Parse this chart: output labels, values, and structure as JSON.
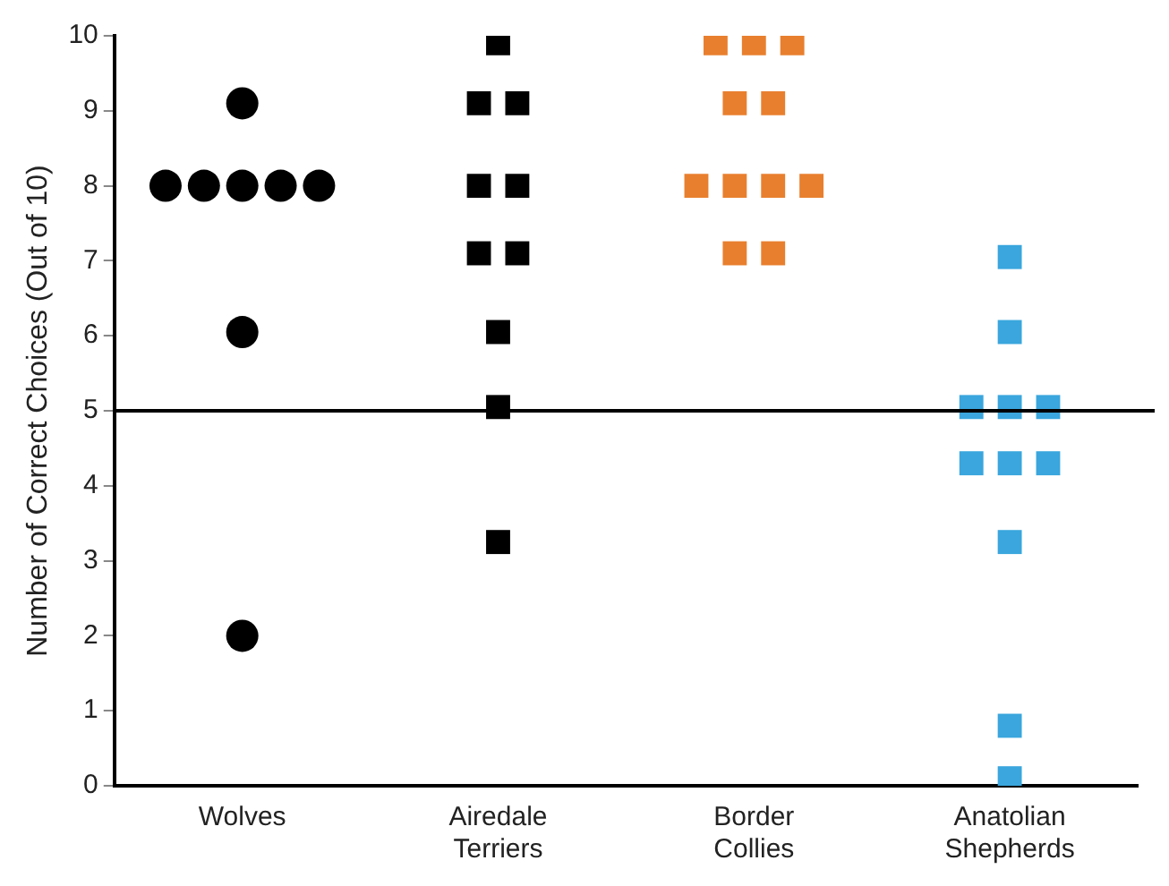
{
  "chart_data": {
    "type": "scatter",
    "ylabel": "Number of Correct Choices (Out of 10)",
    "categories": [
      "Wolves",
      "Airedale Terriers",
      "Border Collies",
      "Anatolian Shepherds"
    ],
    "ylim": [
      0,
      10
    ],
    "yticks": [
      0,
      1,
      2,
      3,
      4,
      5,
      6,
      7,
      8,
      9,
      10
    ],
    "grid": false,
    "legend": false,
    "series": [
      {
        "color": "#000000",
        "marker": "circle",
        "x": [
          "Wolves",
          "Wolves",
          "Wolves",
          "Wolves",
          "Wolves",
          "Wolves",
          "Wolves",
          "Wolves"
        ],
        "values": [
          9.1,
          8,
          8,
          8,
          8,
          8,
          6.05,
          2
        ]
      },
      {
        "color": "#000000",
        "marker": "square",
        "x": [
          "Airedale Terriers",
          "Airedale Terriers",
          "Airedale Terriers",
          "Airedale Terriers",
          "Airedale Terriers",
          "Airedale Terriers",
          "Airedale Terriers",
          "Airedale Terriers",
          "Airedale Terriers",
          "Airedale Terriers"
        ],
        "values": [
          9.9,
          9.1,
          9.1,
          8,
          8,
          7.1,
          7.1,
          6.05,
          5.05,
          3.25
        ]
      },
      {
        "color": "#e87f2e",
        "marker": "square",
        "x": [
          "Border Collies",
          "Border Collies",
          "Border Collies",
          "Border Collies",
          "Border Collies",
          "Border Collies",
          "Border Collies",
          "Border Collies",
          "Border Collies",
          "Border Collies",
          "Border Collies"
        ],
        "values": [
          9.9,
          9.9,
          9.9,
          9.1,
          9.1,
          8,
          8,
          8,
          8,
          7.1,
          7.1
        ]
      },
      {
        "color": "#3aa6dd",
        "marker": "square",
        "x": [
          "Anatolian Shepherds",
          "Anatolian Shepherds",
          "Anatolian Shepherds",
          "Anatolian Shepherds",
          "Anatolian Shepherds",
          "Anatolian Shepherds",
          "Anatolian Shepherds",
          "Anatolian Shepherds",
          "Anatolian Shepherds",
          "Anatolian Shepherds",
          "Anatolian Shepherds"
        ],
        "values": [
          7.05,
          6.05,
          5.05,
          5.05,
          5.05,
          4.3,
          4.3,
          4.3,
          3.25,
          0.8,
          0.1
        ]
      }
    ],
    "ref_lines": [
      {
        "axis": "y",
        "value": 5,
        "color": "#000000"
      }
    ]
  }
}
